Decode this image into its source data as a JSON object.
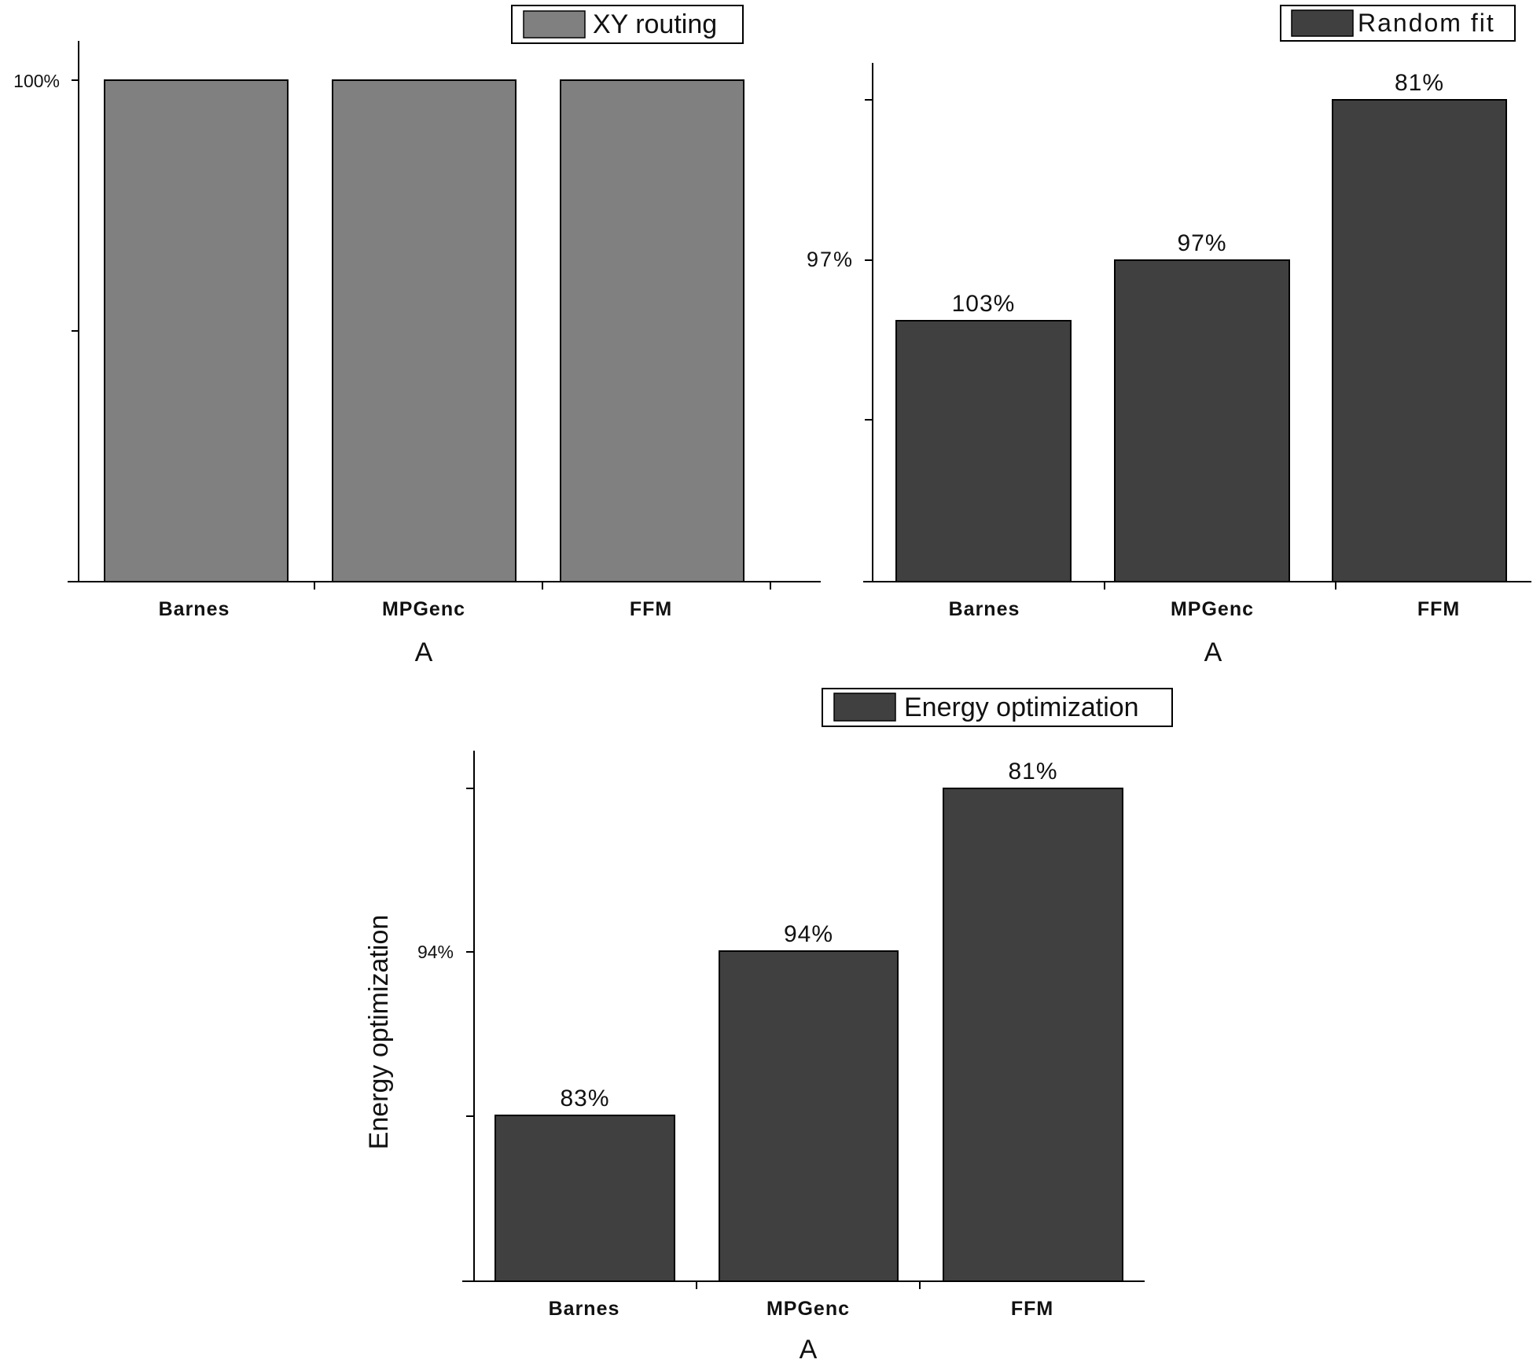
{
  "chart_data": [
    {
      "type": "bar",
      "categories": [
        "Barnes",
        "MPGenc",
        "FFM"
      ],
      "values": [
        100,
        100,
        100
      ],
      "data_labels": [
        "",
        "",
        ""
      ],
      "y_tick_labels": [
        "100%"
      ],
      "legend": "XY routing",
      "xlabel": "A",
      "ylabel": "",
      "bar_color": "#808080",
      "legend_position": "top-right"
    },
    {
      "type": "bar",
      "categories": [
        "Barnes",
        "MPGenc",
        "FFM"
      ],
      "values": [
        103,
        97,
        81
      ],
      "data_labels": [
        "103%",
        "97%",
        "81%"
      ],
      "y_tick_labels": [
        "97%"
      ],
      "legend": "Random fit",
      "xlabel": "A",
      "ylabel": "",
      "bar_color": "#404040",
      "legend_position": "top-right"
    },
    {
      "type": "bar",
      "categories": [
        "Barnes",
        "MPGenc",
        "FFM"
      ],
      "values": [
        83,
        94,
        81
      ],
      "data_labels": [
        "83%",
        "94%",
        "81%"
      ],
      "y_tick_labels": [
        "94%"
      ],
      "legend": "Energy optimization",
      "xlabel": "A",
      "ylabel": "Energy optimization",
      "bar_color": "#404040",
      "legend_position": "top"
    }
  ]
}
